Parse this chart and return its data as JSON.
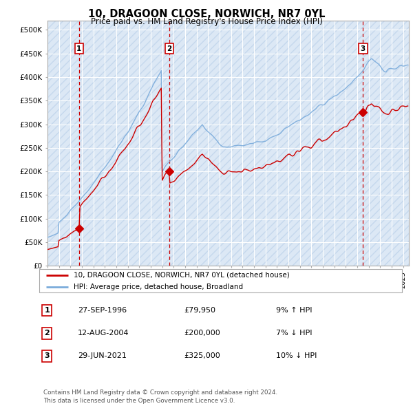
{
  "title": "10, DRAGOON CLOSE, NORWICH, NR7 0YL",
  "subtitle": "Price paid vs. HM Land Registry's House Price Index (HPI)",
  "ylabel_ticks": [
    "£0",
    "£50K",
    "£100K",
    "£150K",
    "£200K",
    "£250K",
    "£300K",
    "£350K",
    "£400K",
    "£450K",
    "£500K"
  ],
  "ytick_values": [
    0,
    50000,
    100000,
    150000,
    200000,
    250000,
    300000,
    350000,
    400000,
    450000,
    500000
  ],
  "ylim": [
    0,
    520000
  ],
  "xlim_start": 1994.0,
  "xlim_end": 2025.5,
  "sale_dates": [
    1996.75,
    2004.62,
    2021.5
  ],
  "sale_prices": [
    79950,
    200000,
    325000
  ],
  "sale_labels": [
    "1",
    "2",
    "3"
  ],
  "hpi_color": "#7aabdb",
  "sale_color": "#cc0000",
  "vline_color": "#cc0000",
  "legend_line1": "10, DRAGOON CLOSE, NORWICH, NR7 0YL (detached house)",
  "legend_line2": "HPI: Average price, detached house, Broadland",
  "table_rows": [
    {
      "num": "1",
      "date": "27-SEP-1996",
      "price": "£79,950",
      "hpi": "9% ↑ HPI"
    },
    {
      "num": "2",
      "date": "12-AUG-2004",
      "price": "£200,000",
      "hpi": "7% ↓ HPI"
    },
    {
      "num": "3",
      "date": "29-JUN-2021",
      "price": "£325,000",
      "hpi": "10% ↓ HPI"
    }
  ],
  "footer": "Contains HM Land Registry data © Crown copyright and database right 2024.\nThis data is licensed under the Open Government Licence v3.0.",
  "xtick_years": [
    1994,
    1995,
    1996,
    1997,
    1998,
    1999,
    2000,
    2001,
    2002,
    2003,
    2004,
    2005,
    2006,
    2007,
    2008,
    2009,
    2010,
    2011,
    2012,
    2013,
    2014,
    2015,
    2016,
    2017,
    2018,
    2019,
    2020,
    2021,
    2022,
    2023,
    2024,
    2025
  ]
}
